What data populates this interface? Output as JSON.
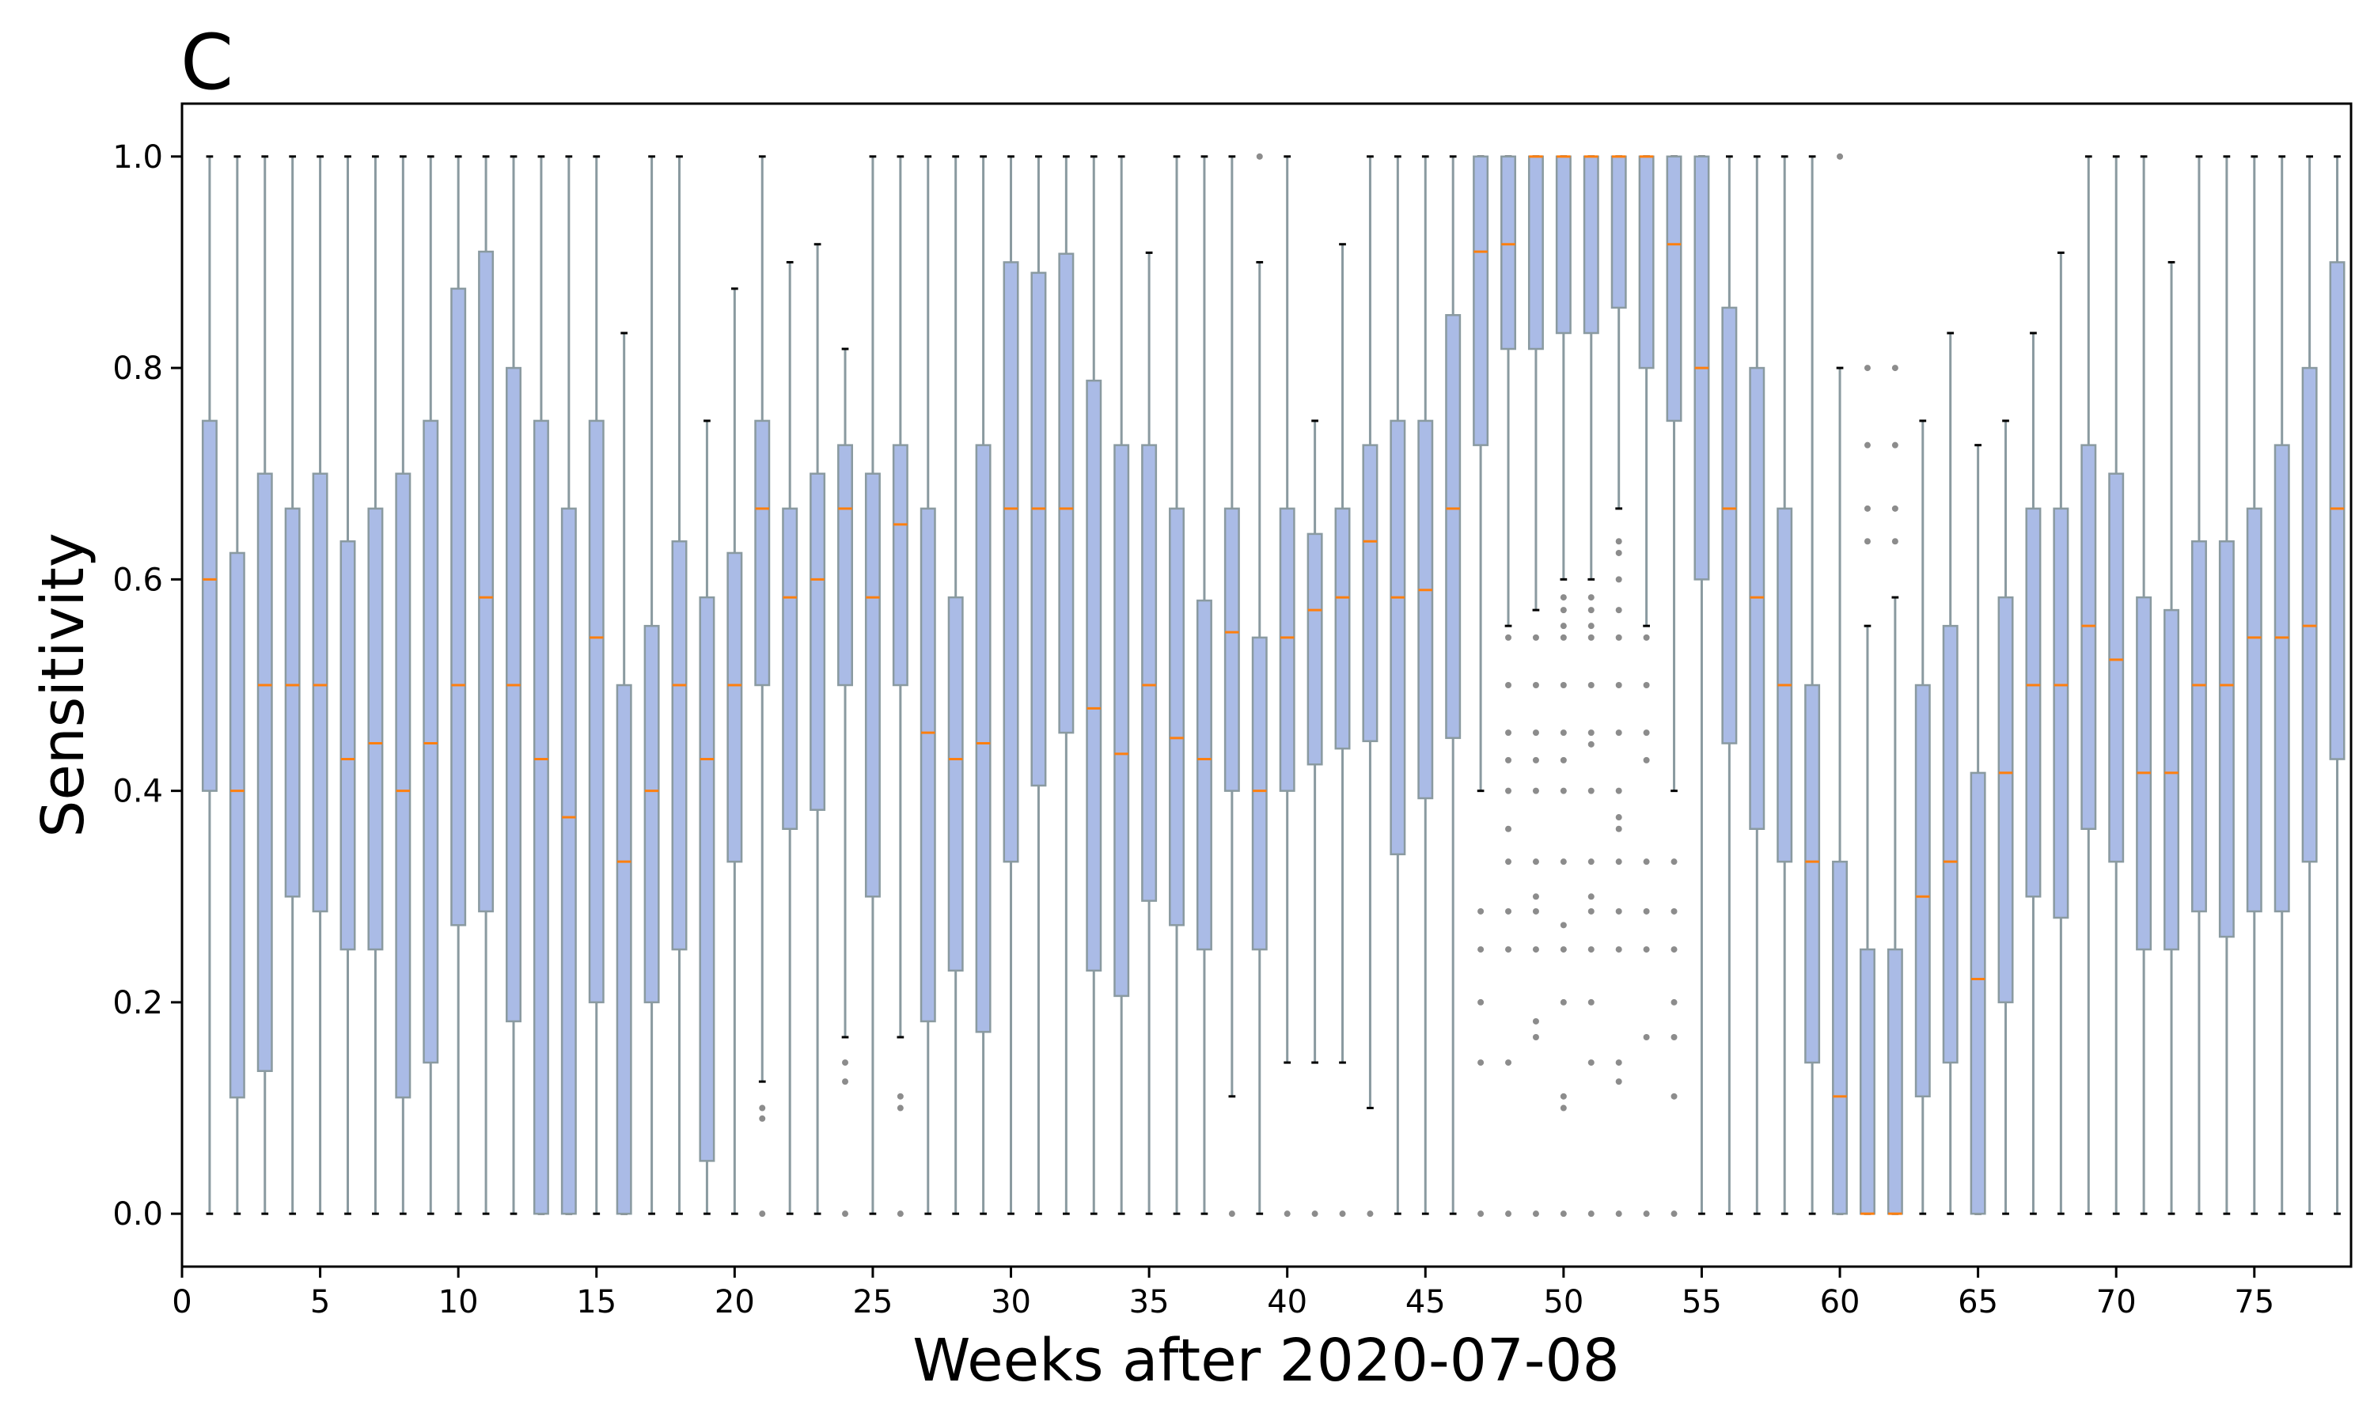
{
  "panel_label": "C",
  "colors": {
    "box_fill": "#aabbe6",
    "box_edge": "#8a9aa0",
    "whisker": "#8a9aa0",
    "cap": "#000000",
    "median": "#ff7f0e",
    "flier": "#8c8c8c",
    "axes": "#000000"
  },
  "chart_data": {
    "type": "box",
    "title": "",
    "xlabel": "Weeks after 2020-07-08",
    "ylabel": "Sensitivity",
    "xlim": [
      0,
      78.5
    ],
    "ylim": [
      -0.05,
      1.05
    ],
    "xticks": [
      0,
      5,
      10,
      15,
      20,
      25,
      30,
      35,
      40,
      45,
      50,
      55,
      60,
      65,
      70,
      75
    ],
    "xtick_labels": [
      "0",
      "5",
      "10",
      "15",
      "20",
      "25",
      "30",
      "35",
      "40",
      "45",
      "50",
      "55",
      "60",
      "65",
      "70",
      "75"
    ],
    "yticks": [
      0.0,
      0.2,
      0.4,
      0.6,
      0.8,
      1.0
    ],
    "ytick_labels": [
      "0.0",
      "0.2",
      "0.4",
      "0.6",
      "0.8",
      "1.0"
    ],
    "grid": false,
    "boxes": [
      {
        "x": 1,
        "q1": 0.4,
        "median": 0.6,
        "q3": 0.75,
        "low": 0.0,
        "high": 1.0,
        "fliers": []
      },
      {
        "x": 2,
        "q1": 0.11,
        "median": 0.4,
        "q3": 0.625,
        "low": 0.0,
        "high": 1.0,
        "fliers": []
      },
      {
        "x": 3,
        "q1": 0.135,
        "median": 0.5,
        "q3": 0.7,
        "low": 0.0,
        "high": 1.0,
        "fliers": []
      },
      {
        "x": 4,
        "q1": 0.3,
        "median": 0.5,
        "q3": 0.667,
        "low": 0.0,
        "high": 1.0,
        "fliers": []
      },
      {
        "x": 5,
        "q1": 0.286,
        "median": 0.5,
        "q3": 0.7,
        "low": 0.0,
        "high": 1.0,
        "fliers": []
      },
      {
        "x": 6,
        "q1": 0.25,
        "median": 0.43,
        "q3": 0.636,
        "low": 0.0,
        "high": 1.0,
        "fliers": []
      },
      {
        "x": 7,
        "q1": 0.25,
        "median": 0.445,
        "q3": 0.667,
        "low": 0.0,
        "high": 1.0,
        "fliers": []
      },
      {
        "x": 8,
        "q1": 0.11,
        "median": 0.4,
        "q3": 0.7,
        "low": 0.0,
        "high": 1.0,
        "fliers": []
      },
      {
        "x": 9,
        "q1": 0.143,
        "median": 0.445,
        "q3": 0.75,
        "low": 0.0,
        "high": 1.0,
        "fliers": []
      },
      {
        "x": 10,
        "q1": 0.273,
        "median": 0.5,
        "q3": 0.875,
        "low": 0.0,
        "high": 1.0,
        "fliers": []
      },
      {
        "x": 11,
        "q1": 0.286,
        "median": 0.583,
        "q3": 0.91,
        "low": 0.0,
        "high": 1.0,
        "fliers": []
      },
      {
        "x": 12,
        "q1": 0.182,
        "median": 0.5,
        "q3": 0.8,
        "low": 0.0,
        "high": 1.0,
        "fliers": []
      },
      {
        "x": 13,
        "q1": 0.0,
        "median": 0.43,
        "q3": 0.75,
        "low": 0.0,
        "high": 1.0,
        "fliers": []
      },
      {
        "x": 14,
        "q1": 0.0,
        "median": 0.375,
        "q3": 0.667,
        "low": 0.0,
        "high": 1.0,
        "fliers": []
      },
      {
        "x": 15,
        "q1": 0.2,
        "median": 0.545,
        "q3": 0.75,
        "low": 0.0,
        "high": 1.0,
        "fliers": []
      },
      {
        "x": 16,
        "q1": 0.0,
        "median": 0.333,
        "q3": 0.5,
        "low": 0.0,
        "high": 0.833,
        "fliers": []
      },
      {
        "x": 17,
        "q1": 0.2,
        "median": 0.4,
        "q3": 0.556,
        "low": 0.0,
        "high": 1.0,
        "fliers": []
      },
      {
        "x": 18,
        "q1": 0.25,
        "median": 0.5,
        "q3": 0.636,
        "low": 0.0,
        "high": 1.0,
        "fliers": []
      },
      {
        "x": 19,
        "q1": 0.05,
        "median": 0.43,
        "q3": 0.583,
        "low": 0.0,
        "high": 0.75,
        "fliers": []
      },
      {
        "x": 20,
        "q1": 0.333,
        "median": 0.5,
        "q3": 0.625,
        "low": 0.0,
        "high": 0.875,
        "fliers": []
      },
      {
        "x": 21,
        "q1": 0.5,
        "median": 0.667,
        "q3": 0.75,
        "low": 0.125,
        "high": 1.0,
        "fliers": [
          0.0,
          0.09,
          0.1
        ]
      },
      {
        "x": 22,
        "q1": 0.364,
        "median": 0.583,
        "q3": 0.667,
        "low": 0.0,
        "high": 0.9,
        "fliers": []
      },
      {
        "x": 23,
        "q1": 0.382,
        "median": 0.6,
        "q3": 0.7,
        "low": 0.0,
        "high": 0.917,
        "fliers": []
      },
      {
        "x": 24,
        "q1": 0.5,
        "median": 0.667,
        "q3": 0.727,
        "low": 0.167,
        "high": 0.818,
        "fliers": [
          0.0,
          0.125,
          0.143
        ]
      },
      {
        "x": 25,
        "q1": 0.3,
        "median": 0.583,
        "q3": 0.7,
        "low": 0.0,
        "high": 1.0,
        "fliers": []
      },
      {
        "x": 26,
        "q1": 0.5,
        "median": 0.652,
        "q3": 0.727,
        "low": 0.167,
        "high": 1.0,
        "fliers": [
          0.0,
          0.1,
          0.111
        ]
      },
      {
        "x": 27,
        "q1": 0.182,
        "median": 0.455,
        "q3": 0.667,
        "low": 0.0,
        "high": 1.0,
        "fliers": []
      },
      {
        "x": 28,
        "q1": 0.23,
        "median": 0.43,
        "q3": 0.583,
        "low": 0.0,
        "high": 1.0,
        "fliers": []
      },
      {
        "x": 29,
        "q1": 0.172,
        "median": 0.445,
        "q3": 0.727,
        "low": 0.0,
        "high": 1.0,
        "fliers": []
      },
      {
        "x": 30,
        "q1": 0.333,
        "median": 0.667,
        "q3": 0.9,
        "low": 0.0,
        "high": 1.0,
        "fliers": []
      },
      {
        "x": 31,
        "q1": 0.405,
        "median": 0.667,
        "q3": 0.89,
        "low": 0.0,
        "high": 1.0,
        "fliers": []
      },
      {
        "x": 32,
        "q1": 0.455,
        "median": 0.667,
        "q3": 0.908,
        "low": 0.0,
        "high": 1.0,
        "fliers": []
      },
      {
        "x": 33,
        "q1": 0.23,
        "median": 0.478,
        "q3": 0.788,
        "low": 0.0,
        "high": 1.0,
        "fliers": []
      },
      {
        "x": 34,
        "q1": 0.206,
        "median": 0.435,
        "q3": 0.727,
        "low": 0.0,
        "high": 1.0,
        "fliers": []
      },
      {
        "x": 35,
        "q1": 0.296,
        "median": 0.5,
        "q3": 0.727,
        "low": 0.0,
        "high": 0.909,
        "fliers": []
      },
      {
        "x": 36,
        "q1": 0.273,
        "median": 0.45,
        "q3": 0.667,
        "low": 0.0,
        "high": 1.0,
        "fliers": []
      },
      {
        "x": 37,
        "q1": 0.25,
        "median": 0.43,
        "q3": 0.58,
        "low": 0.0,
        "high": 1.0,
        "fliers": []
      },
      {
        "x": 38,
        "q1": 0.4,
        "median": 0.55,
        "q3": 0.667,
        "low": 0.111,
        "high": 1.0,
        "fliers": [
          0.0
        ]
      },
      {
        "x": 39,
        "q1": 0.25,
        "median": 0.4,
        "q3": 0.545,
        "low": 0.0,
        "high": 0.9,
        "fliers": [
          1.0
        ]
      },
      {
        "x": 40,
        "q1": 0.4,
        "median": 0.545,
        "q3": 0.667,
        "low": 0.143,
        "high": 1.0,
        "fliers": [
          0.0
        ]
      },
      {
        "x": 41,
        "q1": 0.425,
        "median": 0.571,
        "q3": 0.643,
        "low": 0.143,
        "high": 0.75,
        "fliers": [
          0.0
        ]
      },
      {
        "x": 42,
        "q1": 0.44,
        "median": 0.583,
        "q3": 0.667,
        "low": 0.143,
        "high": 0.917,
        "fliers": [
          0.0
        ]
      },
      {
        "x": 43,
        "q1": 0.447,
        "median": 0.636,
        "q3": 0.727,
        "low": 0.1,
        "high": 1.0,
        "fliers": [
          0.0
        ]
      },
      {
        "x": 44,
        "q1": 0.34,
        "median": 0.583,
        "q3": 0.75,
        "low": 0.0,
        "high": 1.0,
        "fliers": []
      },
      {
        "x": 45,
        "q1": 0.393,
        "median": 0.59,
        "q3": 0.75,
        "low": 0.0,
        "high": 1.0,
        "fliers": []
      },
      {
        "x": 46,
        "q1": 0.45,
        "median": 0.667,
        "q3": 0.85,
        "low": 0.0,
        "high": 1.0,
        "fliers": []
      },
      {
        "x": 47,
        "q1": 0.727,
        "median": 0.91,
        "q3": 1.0,
        "low": 0.4,
        "high": 1.0,
        "fliers": [
          0.0,
          0.143,
          0.2,
          0.25,
          0.286
        ]
      },
      {
        "x": 48,
        "q1": 0.818,
        "median": 0.917,
        "q3": 1.0,
        "low": 0.556,
        "high": 1.0,
        "fliers": [
          0.0,
          0.143,
          0.25,
          0.286,
          0.333,
          0.364,
          0.4,
          0.429,
          0.455,
          0.5,
          0.545
        ]
      },
      {
        "x": 49,
        "q1": 0.818,
        "median": 1.0,
        "q3": 1.0,
        "low": 0.571,
        "high": 1.0,
        "fliers": [
          0.0,
          0.167,
          0.182,
          0.25,
          0.286,
          0.3,
          0.333,
          0.4,
          0.429,
          0.455,
          0.5,
          0.545
        ]
      },
      {
        "x": 50,
        "q1": 0.833,
        "median": 1.0,
        "q3": 1.0,
        "low": 0.6,
        "high": 1.0,
        "fliers": [
          0.0,
          0.1,
          0.111,
          0.2,
          0.25,
          0.273,
          0.333,
          0.4,
          0.429,
          0.455,
          0.5,
          0.545,
          0.556,
          0.571,
          0.583
        ]
      },
      {
        "x": 51,
        "q1": 0.833,
        "median": 1.0,
        "q3": 1.0,
        "low": 0.6,
        "high": 1.0,
        "fliers": [
          0.0,
          0.143,
          0.2,
          0.25,
          0.286,
          0.3,
          0.333,
          0.4,
          0.444,
          0.455,
          0.5,
          0.545,
          0.556,
          0.571,
          0.583
        ]
      },
      {
        "x": 52,
        "q1": 0.857,
        "median": 1.0,
        "q3": 1.0,
        "low": 0.667,
        "high": 1.0,
        "fliers": [
          0.0,
          0.125,
          0.143,
          0.25,
          0.286,
          0.333,
          0.364,
          0.375,
          0.4,
          0.455,
          0.5,
          0.545,
          0.571,
          0.6,
          0.625,
          0.636
        ]
      },
      {
        "x": 53,
        "q1": 0.8,
        "median": 1.0,
        "q3": 1.0,
        "low": 0.556,
        "high": 1.0,
        "fliers": [
          0.0,
          0.167,
          0.25,
          0.286,
          0.333,
          0.429,
          0.455,
          0.5,
          0.545
        ]
      },
      {
        "x": 54,
        "q1": 0.75,
        "median": 0.917,
        "q3": 1.0,
        "low": 0.4,
        "high": 1.0,
        "fliers": [
          0.0,
          0.111,
          0.167,
          0.2,
          0.25,
          0.286,
          0.333
        ]
      },
      {
        "x": 55,
        "q1": 0.6,
        "median": 0.8,
        "q3": 1.0,
        "low": 0.0,
        "high": 1.0,
        "fliers": []
      },
      {
        "x": 56,
        "q1": 0.445,
        "median": 0.667,
        "q3": 0.857,
        "low": 0.0,
        "high": 1.0,
        "fliers": []
      },
      {
        "x": 57,
        "q1": 0.364,
        "median": 0.583,
        "q3": 0.8,
        "low": 0.0,
        "high": 1.0,
        "fliers": []
      },
      {
        "x": 58,
        "q1": 0.333,
        "median": 0.5,
        "q3": 0.667,
        "low": 0.0,
        "high": 1.0,
        "fliers": []
      },
      {
        "x": 59,
        "q1": 0.143,
        "median": 0.333,
        "q3": 0.5,
        "low": 0.0,
        "high": 1.0,
        "fliers": []
      },
      {
        "x": 60,
        "q1": 0.0,
        "median": 0.111,
        "q3": 0.333,
        "low": 0.0,
        "high": 0.8,
        "fliers": [
          1.0
        ]
      },
      {
        "x": 61,
        "q1": 0.0,
        "median": 0.0,
        "q3": 0.25,
        "low": 0.0,
        "high": 0.556,
        "fliers": [
          0.636,
          0.667,
          0.727,
          0.8
        ]
      },
      {
        "x": 62,
        "q1": 0.0,
        "median": 0.0,
        "q3": 0.25,
        "low": 0.0,
        "high": 0.583,
        "fliers": [
          0.636,
          0.667,
          0.727,
          0.8
        ]
      },
      {
        "x": 63,
        "q1": 0.111,
        "median": 0.3,
        "q3": 0.5,
        "low": 0.0,
        "high": 0.75,
        "fliers": []
      },
      {
        "x": 64,
        "q1": 0.143,
        "median": 0.333,
        "q3": 0.556,
        "low": 0.0,
        "high": 0.833,
        "fliers": []
      },
      {
        "x": 65,
        "q1": 0.0,
        "median": 0.222,
        "q3": 0.417,
        "low": 0.0,
        "high": 0.727,
        "fliers": []
      },
      {
        "x": 66,
        "q1": 0.2,
        "median": 0.417,
        "q3": 0.583,
        "low": 0.0,
        "high": 0.75,
        "fliers": []
      },
      {
        "x": 67,
        "q1": 0.3,
        "median": 0.5,
        "q3": 0.667,
        "low": 0.0,
        "high": 0.833,
        "fliers": []
      },
      {
        "x": 68,
        "q1": 0.28,
        "median": 0.5,
        "q3": 0.667,
        "low": 0.0,
        "high": 0.909,
        "fliers": []
      },
      {
        "x": 69,
        "q1": 0.364,
        "median": 0.556,
        "q3": 0.727,
        "low": 0.0,
        "high": 1.0,
        "fliers": []
      },
      {
        "x": 70,
        "q1": 0.333,
        "median": 0.524,
        "q3": 0.7,
        "low": 0.0,
        "high": 1.0,
        "fliers": []
      },
      {
        "x": 71,
        "q1": 0.25,
        "median": 0.417,
        "q3": 0.583,
        "low": 0.0,
        "high": 1.0,
        "fliers": []
      },
      {
        "x": 72,
        "q1": 0.25,
        "median": 0.417,
        "q3": 0.571,
        "low": 0.0,
        "high": 0.9,
        "fliers": []
      },
      {
        "x": 73,
        "q1": 0.286,
        "median": 0.5,
        "q3": 0.636,
        "low": 0.0,
        "high": 1.0,
        "fliers": []
      },
      {
        "x": 74,
        "q1": 0.262,
        "median": 0.5,
        "q3": 0.636,
        "low": 0.0,
        "high": 1.0,
        "fliers": []
      },
      {
        "x": 75,
        "q1": 0.286,
        "median": 0.545,
        "q3": 0.667,
        "low": 0.0,
        "high": 1.0,
        "fliers": []
      },
      {
        "x": 76,
        "q1": 0.286,
        "median": 0.545,
        "q3": 0.727,
        "low": 0.0,
        "high": 1.0,
        "fliers": []
      },
      {
        "x": 77,
        "q1": 0.333,
        "median": 0.556,
        "q3": 0.8,
        "low": 0.0,
        "high": 1.0,
        "fliers": []
      },
      {
        "x": 78,
        "q1": 0.43,
        "median": 0.667,
        "q3": 0.9,
        "low": 0.0,
        "high": 1.0,
        "fliers": []
      }
    ]
  }
}
